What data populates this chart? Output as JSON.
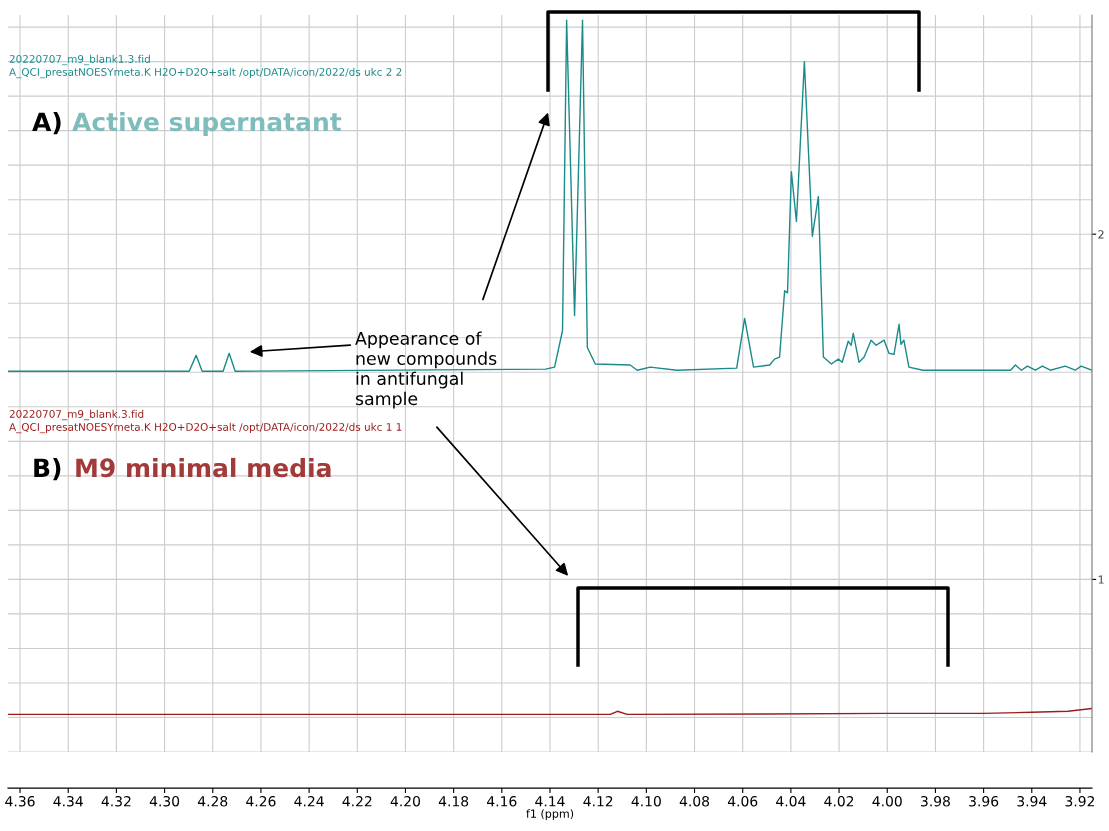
{
  "chart_data": {
    "type": "line",
    "xlabel": "f1 (ppm)",
    "x": [
      4.365,
      4.3063,
      4.2898,
      4.2869,
      4.2844,
      4.2757,
      4.2732,
      4.2707,
      4.1418,
      4.1381,
      4.1348,
      4.1331,
      4.1298,
      4.1265,
      4.1245,
      4.1212,
      4.1067,
      4.1038,
      4.0984,
      4.0873,
      4.0625,
      4.0592,
      4.0555,
      4.0488,
      4.0468,
      4.0447,
      4.0426,
      4.0414,
      4.0398,
      4.0377,
      4.0344,
      4.0311,
      4.0286,
      4.0265,
      4.0232,
      4.0203,
      4.0187,
      4.0162,
      4.015,
      4.0141,
      4.0117,
      4.0096,
      4.0067,
      4.0046,
      4.0034,
      4.0013,
      3.9993,
      3.9972,
      3.9951,
      3.9943,
      3.9931,
      3.991,
      3.9852,
      3.9488,
      3.9468,
      3.9443,
      3.9418,
      3.9385,
      3.9356,
      3.9323,
      3.9261,
      3.922,
      3.9195,
      3.915
    ],
    "series": [
      {
        "color": "#1a8a8a",
        "values": [
          1.603,
          1.603,
          1.603,
          1.649,
          1.603,
          1.603,
          1.655,
          1.603,
          1.609,
          1.615,
          1.721,
          2.62,
          1.764,
          2.62,
          1.672,
          1.624,
          1.621,
          1.606,
          1.615,
          1.606,
          1.612,
          1.756,
          1.615,
          1.621,
          1.638,
          1.644,
          1.836,
          1.83,
          2.181,
          2.037,
          2.5,
          1.994,
          2.109,
          1.644,
          1.624,
          1.638,
          1.629,
          1.69,
          1.678,
          1.713,
          1.629,
          1.644,
          1.693,
          1.678,
          1.684,
          1.693,
          1.655,
          1.652,
          1.739,
          1.681,
          1.693,
          1.615,
          1.606,
          1.606,
          1.621,
          1.606,
          1.618,
          1.606,
          1.618,
          1.606,
          1.618,
          1.606,
          1.618,
          1.606
        ]
      },
      {
        "color": "#9b1c1c",
        "x": [
          4.365,
          4.2,
          4.115,
          4.112,
          4.108,
          4.05,
          4.0,
          3.96,
          3.94,
          3.925,
          3.915
        ],
        "values": [
          0.609,
          0.609,
          0.609,
          0.618,
          0.609,
          0.61,
          0.612,
          0.612,
          0.615,
          0.618,
          0.626
        ]
      }
    ],
    "xlim": [
      4.365,
      3.915
    ],
    "xticks": [
      4.36,
      4.34,
      4.32,
      {
        "value": 4.3,
        "label": "4.30"
      },
      4.28,
      4.26,
      4.24,
      4.22,
      {
        "value": 4.2,
        "label": "4.20"
      },
      4.18,
      4.16,
      4.14,
      4.12,
      {
        "value": 4.1,
        "label": "4.10"
      },
      4.08,
      4.06,
      4.04,
      4.02,
      {
        "value": 4.0,
        "label": "4.00"
      },
      3.98,
      3.96,
      3.94,
      3.92
    ],
    "ylim": [
      0.5,
      2.635
    ],
    "yticks": [
      1,
      2
    ],
    "grid": true,
    "annotations": [
      "20220707_m9_blank1.3.fid",
      "A_QCI_presatNOESYmeta.K H2O+D2O+salt /opt/DATA/icon/2022/ds ukc 2 2",
      "A)",
      "Active supernatant",
      "20220707_m9_blank.3.fid",
      "A_QCI_presatNOESYmeta.K H2O+D2O+salt /opt/DATA/icon/2022/ds ukc 1 1",
      "B)",
      "M9 minimal media",
      "Appearance of\nnew compounds\nin antifungal\nsample"
    ]
  }
}
